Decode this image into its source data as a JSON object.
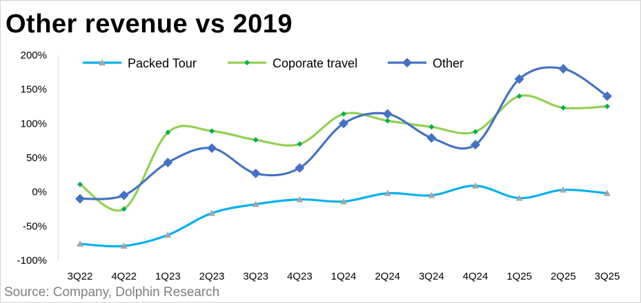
{
  "chart_data": {
    "type": "line",
    "title": "Other revenue vs 2019",
    "source": "Source: Company, Dolphin Research",
    "categories": [
      "3Q22",
      "4Q22",
      "1Q23",
      "2Q23",
      "3Q23",
      "4Q23",
      "1Q24",
      "2Q24",
      "3Q24",
      "4Q24",
      "1Q25",
      "2Q25",
      "3Q25"
    ],
    "ylim": [
      -100,
      200
    ],
    "yticks": [
      "-100%",
      "-50%",
      "0%",
      "50%",
      "100%",
      "150%",
      "200%"
    ],
    "ytick_values": [
      -100,
      -50,
      0,
      50,
      100,
      150,
      200
    ],
    "grid": false,
    "smooth": true,
    "legend": "top",
    "series": [
      {
        "name": "Packed Tour",
        "color": "#00b0f0",
        "marker_color": "#a6a6a6",
        "marker": "triangle",
        "values": [
          -76,
          -79,
          -63,
          -31,
          -18,
          -11,
          -14,
          -2,
          -5,
          9,
          -9,
          3,
          -2
        ]
      },
      {
        "name": "Coporate travel",
        "color": "#92d050",
        "marker_color": "#00b050",
        "marker": "diamond-small",
        "values": [
          11,
          -25,
          87,
          89,
          76,
          70,
          114,
          104,
          95,
          88,
          140,
          123,
          125
        ]
      },
      {
        "name": "Other",
        "color": "#4472c4",
        "marker_color": "#4472c4",
        "marker": "diamond",
        "values": [
          -10,
          -5,
          43,
          64,
          27,
          35,
          100,
          114,
          79,
          69,
          165,
          180,
          140
        ]
      }
    ]
  }
}
